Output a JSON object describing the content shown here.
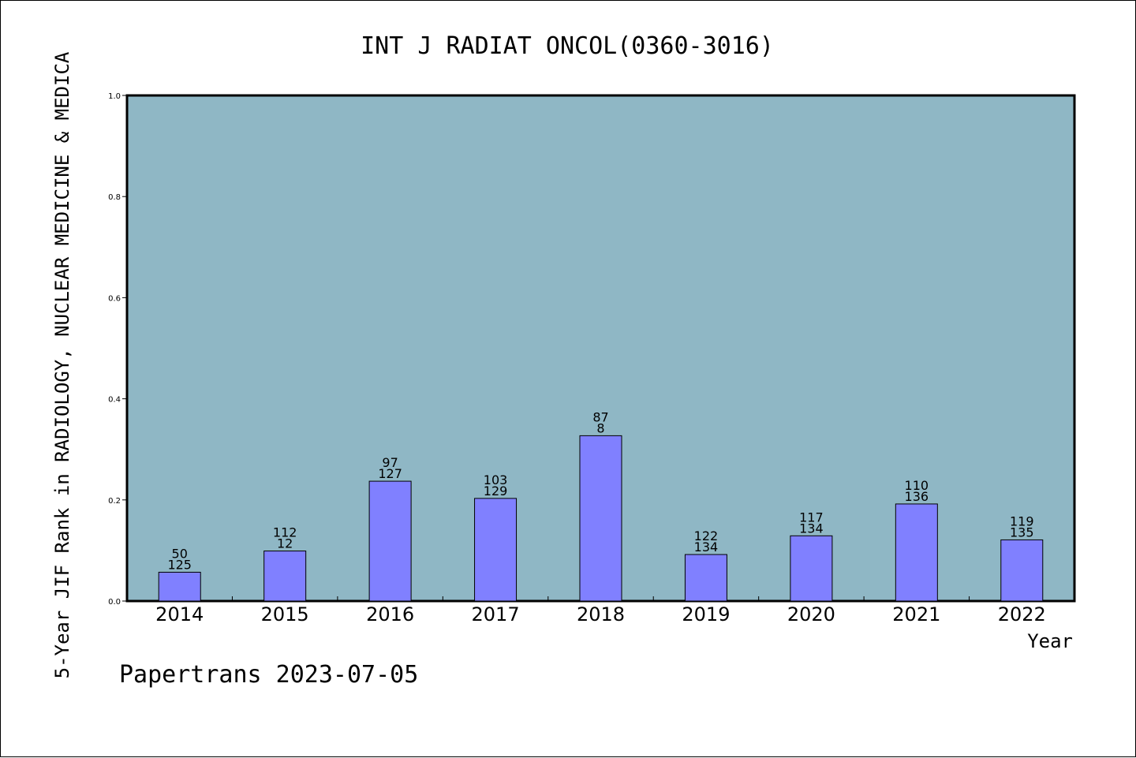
{
  "chart_data": {
    "type": "bar",
    "title": "INT J RADIAT ONCOL(0360-3016)",
    "xlabel": "Year",
    "ylabel": "5-Year JIF Rank in RADIOLOGY, NUCLEAR MEDICINE & MEDICA",
    "ylim": [
      0,
      1.0
    ],
    "yticks": [
      "0.0",
      "0.2",
      "0.4",
      "0.6",
      "0.8",
      "1.0"
    ],
    "categories": [
      "2014",
      "2015",
      "2016",
      "2017",
      "2018",
      "2019",
      "2020",
      "2021",
      "2022"
    ],
    "values": [
      0.057,
      0.099,
      0.237,
      0.203,
      0.327,
      0.092,
      0.129,
      0.192,
      0.121
    ],
    "labels_top": [
      "50",
      "112",
      "97",
      "103",
      "87",
      "122",
      "117",
      "110",
      "119"
    ],
    "labels_bottom": [
      "125",
      "12",
      "127",
      "129",
      "8",
      "134",
      "134",
      "136",
      "135"
    ],
    "grid": false,
    "colors": {
      "plot_bg": "#8fb7c5",
      "bar": "#8080ff",
      "bar_stroke": "#000000"
    }
  },
  "footer": "Papertrans 2023-07-05"
}
